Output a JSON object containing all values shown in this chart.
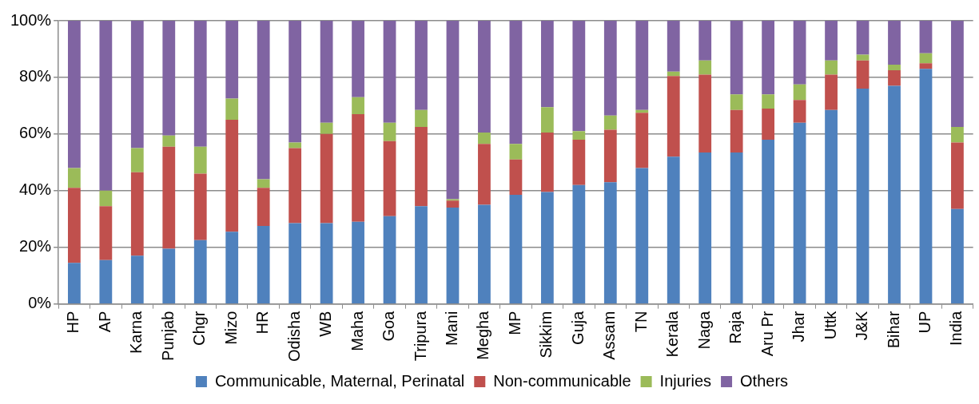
{
  "chart_data": {
    "type": "bar",
    "stacked": true,
    "categories": [
      "HP",
      "AP",
      "Karna",
      "Punjab",
      "Chgr",
      "Mizo",
      "HR",
      "Odisha",
      "WB",
      "Maha",
      "Goa",
      "Tripura",
      "Mani",
      "Megha",
      "MP",
      "Sikkim",
      "Guja",
      "Assam",
      "TN",
      "Kerala",
      "Naga",
      "Raja",
      "Aru Pr",
      "Jhar",
      "Uttk",
      "J&K",
      "Bihar",
      "UP",
      "India"
    ],
    "series": [
      {
        "name": "Communicable, Maternal, Perinatal",
        "color": "#4f81bd",
        "values": [
          14.5,
          15.5,
          17,
          19.5,
          22.5,
          25.5,
          27.5,
          28.5,
          28.5,
          29,
          31,
          34.5,
          34,
          35,
          38.5,
          39.5,
          42,
          43,
          48,
          52,
          53.5,
          53.5,
          58,
          64,
          68.5,
          76,
          77,
          83,
          33.5
        ]
      },
      {
        "name": "Non-communicable",
        "color": "#c0504d",
        "values": [
          26.5,
          19,
          29.5,
          36,
          23.5,
          39.5,
          13.5,
          26.5,
          31.5,
          38,
          26.5,
          28,
          2.5,
          21.5,
          12.5,
          21,
          16,
          18.5,
          19.5,
          28.5,
          27.5,
          15,
          11,
          8,
          12.5,
          10,
          5.5,
          2,
          23.5
        ]
      },
      {
        "name": "Injuries",
        "color": "#9bbb59",
        "values": [
          7,
          5.5,
          8.5,
          4,
          9.5,
          7.5,
          3,
          2,
          4,
          6,
          6.5,
          6,
          0.5,
          4,
          5.5,
          9,
          3,
          5,
          1,
          1.5,
          5,
          5.5,
          5,
          5.5,
          5,
          2,
          2,
          3.5,
          5.5
        ]
      },
      {
        "name": "Others",
        "color": "#8064a2",
        "values": [
          52,
          60,
          45,
          40.5,
          44.5,
          27.5,
          56,
          43,
          36,
          27,
          36,
          31.5,
          63,
          39.5,
          43.5,
          30.5,
          39,
          33.5,
          31.5,
          18,
          14,
          26,
          26,
          22.5,
          14,
          12,
          15.5,
          11.5,
          37.5
        ]
      }
    ],
    "ylim": [
      0,
      100
    ],
    "yticks": [
      {
        "value": 0,
        "label": "0%"
      },
      {
        "value": 20,
        "label": "20%"
      },
      {
        "value": 40,
        "label": "40%"
      },
      {
        "value": 60,
        "label": "60%"
      },
      {
        "value": 80,
        "label": "80%"
      },
      {
        "value": 100,
        "label": "100%"
      }
    ],
    "grid": "y",
    "legend": "bottom"
  }
}
